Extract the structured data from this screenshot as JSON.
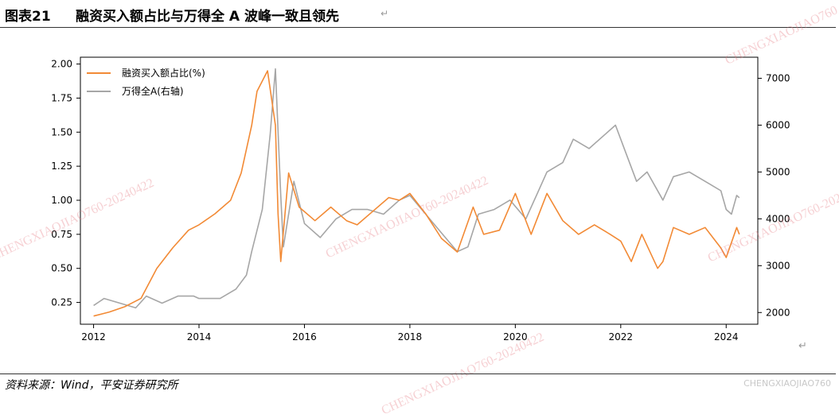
{
  "header": {
    "figure_number": "图表21",
    "title": "融资买入额占比与万得全 A 波峰一致且领先",
    "return_mark": "↵"
  },
  "footer": {
    "source": "资料来源：Wind，平安证券研究所",
    "watermark": "CHENGXIAOJIAO760",
    "return_mark": "↵"
  },
  "watermarks": [
    "CHENGXIAOJIAO760",
    "CHENGXIAOJIAO760-20240422",
    "CHENGXIAOJIAO760-20240422",
    "CHENGXIAOJIAO760-20240422",
    "CHENGXIAOJIAO760-20240422"
  ],
  "chart_data": {
    "type": "line",
    "title": "",
    "xlabel": "",
    "ylabel": "",
    "xlim": [
      2011.75,
      2024.6
    ],
    "ylim_left": [
      0.09,
      2.05
    ],
    "ylim_right": [
      1750,
      7450
    ],
    "x_ticks": [
      "2012",
      "2014",
      "2016",
      "2018",
      "2020",
      "2022",
      "2024"
    ],
    "y_ticks_left": [
      "0.25",
      "0.50",
      "0.75",
      "1.00",
      "1.25",
      "1.50",
      "1.75",
      "2.00"
    ],
    "y_ticks_right": [
      "2000",
      "3000",
      "4000",
      "5000",
      "6000",
      "7000"
    ],
    "legend_position": "top-left",
    "series": [
      {
        "name": "融资买入额占比(%)",
        "axis": "left",
        "color": "#f28a35",
        "points": [
          [
            2012.0,
            0.15
          ],
          [
            2012.3,
            0.18
          ],
          [
            2012.6,
            0.22
          ],
          [
            2012.9,
            0.28
          ],
          [
            2013.2,
            0.5
          ],
          [
            2013.5,
            0.65
          ],
          [
            2013.8,
            0.78
          ],
          [
            2014.0,
            0.82
          ],
          [
            2014.3,
            0.9
          ],
          [
            2014.6,
            1.0
          ],
          [
            2014.8,
            1.2
          ],
          [
            2015.0,
            1.55
          ],
          [
            2015.1,
            1.8
          ],
          [
            2015.3,
            1.95
          ],
          [
            2015.45,
            1.55
          ],
          [
            2015.5,
            0.9
          ],
          [
            2015.55,
            0.55
          ],
          [
            2015.7,
            1.2
          ],
          [
            2015.9,
            0.95
          ],
          [
            2016.2,
            0.85
          ],
          [
            2016.5,
            0.95
          ],
          [
            2016.8,
            0.85
          ],
          [
            2017.0,
            0.82
          ],
          [
            2017.3,
            0.92
          ],
          [
            2017.6,
            1.02
          ],
          [
            2017.8,
            1.0
          ],
          [
            2018.0,
            1.05
          ],
          [
            2018.3,
            0.9
          ],
          [
            2018.6,
            0.72
          ],
          [
            2018.9,
            0.62
          ],
          [
            2019.2,
            0.95
          ],
          [
            2019.4,
            0.75
          ],
          [
            2019.7,
            0.78
          ],
          [
            2020.0,
            1.05
          ],
          [
            2020.3,
            0.75
          ],
          [
            2020.6,
            1.05
          ],
          [
            2020.9,
            0.85
          ],
          [
            2021.2,
            0.75
          ],
          [
            2021.5,
            0.82
          ],
          [
            2021.8,
            0.75
          ],
          [
            2022.0,
            0.7
          ],
          [
            2022.2,
            0.55
          ],
          [
            2022.4,
            0.75
          ],
          [
            2022.7,
            0.5
          ],
          [
            2022.8,
            0.55
          ],
          [
            2023.0,
            0.8
          ],
          [
            2023.3,
            0.75
          ],
          [
            2023.6,
            0.8
          ],
          [
            2023.9,
            0.65
          ],
          [
            2024.0,
            0.58
          ],
          [
            2024.2,
            0.8
          ],
          [
            2024.25,
            0.75
          ]
        ]
      },
      {
        "name": "万得全A(右轴)",
        "axis": "right",
        "color": "#a6a6a6",
        "points": [
          [
            2012.0,
            2150
          ],
          [
            2012.2,
            2300
          ],
          [
            2012.5,
            2200
          ],
          [
            2012.8,
            2100
          ],
          [
            2013.0,
            2350
          ],
          [
            2013.3,
            2200
          ],
          [
            2013.6,
            2350
          ],
          [
            2013.9,
            2350
          ],
          [
            2014.0,
            2300
          ],
          [
            2014.4,
            2300
          ],
          [
            2014.7,
            2500
          ],
          [
            2014.9,
            2800
          ],
          [
            2015.0,
            3300
          ],
          [
            2015.2,
            4200
          ],
          [
            2015.35,
            5800
          ],
          [
            2015.45,
            7200
          ],
          [
            2015.55,
            4500
          ],
          [
            2015.6,
            3400
          ],
          [
            2015.8,
            4800
          ],
          [
            2016.0,
            3900
          ],
          [
            2016.3,
            3600
          ],
          [
            2016.6,
            4000
          ],
          [
            2016.9,
            4200
          ],
          [
            2017.2,
            4200
          ],
          [
            2017.5,
            4100
          ],
          [
            2017.8,
            4400
          ],
          [
            2018.0,
            4500
          ],
          [
            2018.3,
            4100
          ],
          [
            2018.6,
            3700
          ],
          [
            2018.9,
            3300
          ],
          [
            2019.1,
            3400
          ],
          [
            2019.3,
            4100
          ],
          [
            2019.6,
            4200
          ],
          [
            2019.9,
            4400
          ],
          [
            2020.2,
            4000
          ],
          [
            2020.4,
            4500
          ],
          [
            2020.6,
            5000
          ],
          [
            2020.9,
            5200
          ],
          [
            2021.1,
            5700
          ],
          [
            2021.4,
            5500
          ],
          [
            2021.7,
            5800
          ],
          [
            2021.9,
            6000
          ],
          [
            2022.1,
            5400
          ],
          [
            2022.3,
            4800
          ],
          [
            2022.5,
            5000
          ],
          [
            2022.8,
            4400
          ],
          [
            2023.0,
            4900
          ],
          [
            2023.3,
            5000
          ],
          [
            2023.6,
            4800
          ],
          [
            2023.9,
            4600
          ],
          [
            2024.0,
            4200
          ],
          [
            2024.1,
            4100
          ],
          [
            2024.2,
            4500
          ],
          [
            2024.25,
            4450
          ]
        ]
      }
    ]
  }
}
